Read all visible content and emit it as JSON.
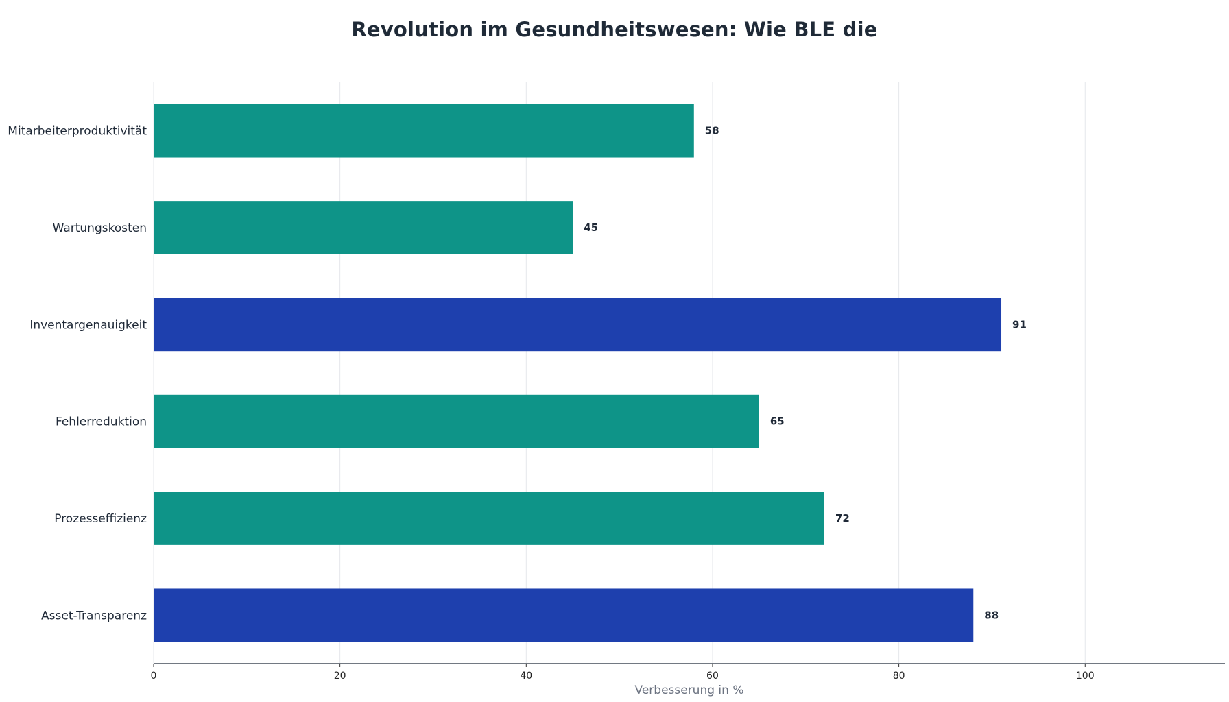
{
  "chart_data": {
    "type": "bar",
    "orientation": "horizontal",
    "title": "Revolution im Gesundheitswesen: Wie BLE die",
    "xlabel": "Verbesserung in %",
    "ylabel": "",
    "categories": [
      "Mitarbeiterproduktivität",
      "Wartungskosten",
      "Inventargenauigkeit",
      "Fehlerreduktion",
      "Prozesseffizienz",
      "Asset-Transparenz"
    ],
    "values": [
      58,
      45,
      91,
      65,
      72,
      88
    ],
    "bar_colors": [
      "#0e9488",
      "#0e9488",
      "#1e40ae",
      "#0e9488",
      "#0e9488",
      "#1e40ae"
    ],
    "xlim": [
      0,
      115
    ],
    "xticks": [
      0,
      20,
      40,
      60,
      80,
      100
    ],
    "grid": "vertical",
    "legend": "none",
    "data_labels": true
  },
  "colors": {
    "primary_bar": "#0e9488",
    "highlight_bar": "#1e40ae",
    "gridline": "#e5e7eb",
    "axis_line": "#1f2937",
    "title_text": "#1f2a37",
    "axis_title_text": "#6b7280"
  }
}
